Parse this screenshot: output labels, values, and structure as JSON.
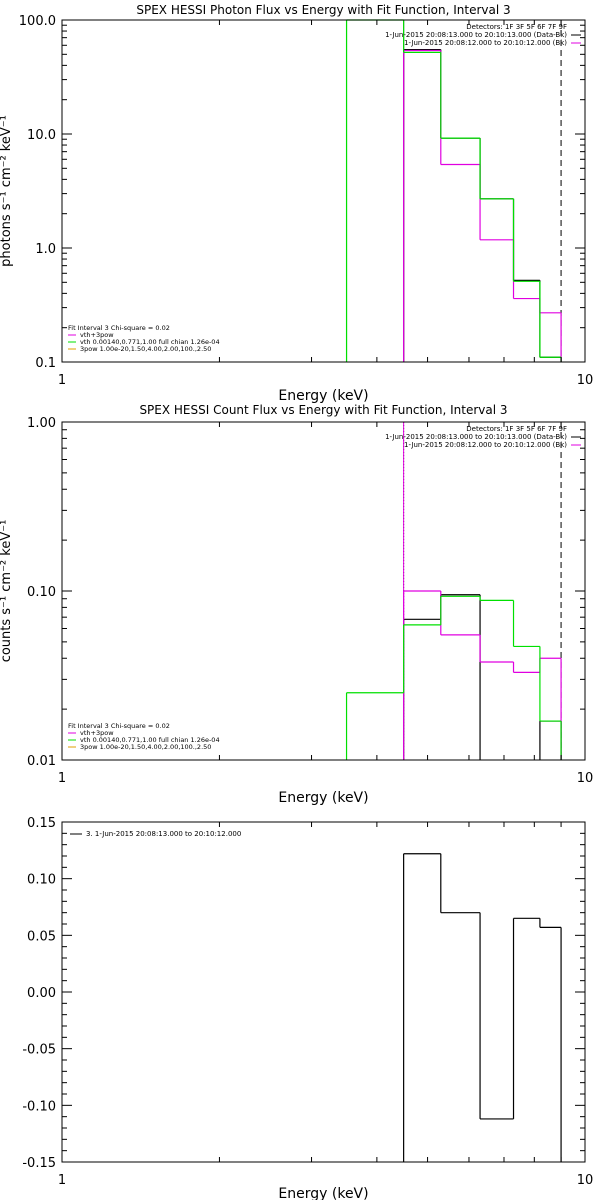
{
  "colors": {
    "axis": "#000000",
    "data": "#000000",
    "model": "#00e000",
    "fit": "#e000e0",
    "comp": "#00e000",
    "pileup": "#e0a000"
  },
  "chart_data": [
    {
      "type": "line",
      "title": "SPEX HESSI Photon Flux vs Energy with Fit Function, Interval 3",
      "xlabel": "Energy (keV)",
      "ylabel": "photons s⁻¹ cm⁻² keV⁻¹",
      "xscale": "log",
      "yscale": "log",
      "xlim": [
        1,
        10
      ],
      "ylim": [
        0.1,
        100
      ],
      "x_tick_labels": [
        "1",
        "10"
      ],
      "y_ticks": [
        0.1,
        1,
        10,
        100
      ],
      "y_tick_labels": [
        "0.1",
        "1.0",
        "10.0",
        "100.0"
      ],
      "legend_top_right": [
        {
          "text": "Detectors: 1F 3F 5F 6F 7F 9F",
          "color": "#000000"
        },
        {
          "text": "1-Jun-2015 20:08:13.000 to 20:10:13.000 (Data-Bk)",
          "color": "#000000"
        },
        {
          "text": "1-Jun-2015 20:08:12.000 to 20:10:12.000 (Bk)",
          "color": "#e000e0"
        }
      ],
      "legend_bottom_left": [
        {
          "text": "Fit Interval 3   Chi-square = 0.02",
          "color": "#000000"
        },
        {
          "text": "vth+3pow",
          "color": "#e000e0"
        },
        {
          "text": "vth 0.00140,0.771,1.00  full chian 1.26e-04",
          "color": "#00e000"
        },
        {
          "text": "3pow 1.00e-20,1.50,4.00,2.00,100.,2.50",
          "color": "#e0a000"
        }
      ],
      "vlines": [
        {
          "x": 3.5,
          "color": "#00e000",
          "style": "solid"
        },
        {
          "x": 4.5,
          "color": "#00e000",
          "style": "solid"
        },
        {
          "x": 4.5,
          "color": "#e000e0",
          "style": "solid"
        },
        {
          "x": 9.0,
          "color": "#000000",
          "style": "dashed"
        }
      ],
      "edges": [
        3.5,
        4.5,
        5.3,
        6.3,
        7.3,
        8.2,
        9.0
      ],
      "series": [
        {
          "name": "Data-Bk",
          "color": "#000000",
          "values": [
            null,
            55,
            9.2,
            2.7,
            0.52,
            0.11
          ]
        },
        {
          "name": "vth+3pow",
          "color": "#e000e0",
          "values": [
            null,
            54,
            5.4,
            1.18,
            0.36,
            0.27
          ]
        },
        {
          "name": "vth",
          "color": "#00e000",
          "values": [
            100,
            52,
            9.2,
            2.7,
            0.51,
            0.11
          ]
        }
      ]
    },
    {
      "type": "line",
      "title": "SPEX HESSI Count Flux vs Energy with Fit Function, Interval 3",
      "xlabel": "Energy (keV)",
      "ylabel": "counts s⁻¹ cm⁻² keV⁻¹",
      "xscale": "log",
      "yscale": "log",
      "xlim": [
        1,
        10
      ],
      "ylim": [
        0.01,
        1.0
      ],
      "x_tick_labels": [
        "1",
        "10"
      ],
      "y_ticks": [
        0.01,
        0.1,
        1.0
      ],
      "y_tick_labels": [
        "0.01",
        "0.10",
        "1.00"
      ],
      "legend_top_right": [
        {
          "text": "Detectors: 1F 3F 5F 6F 7F 9F",
          "color": "#000000"
        },
        {
          "text": "1-Jun-2015 20:08:13.000 to 20:10:13.000 (Data-Bk)",
          "color": "#000000"
        },
        {
          "text": "1-Jun-2015 20:08:12.000 to 20:10:12.000 (Bk)",
          "color": "#e000e0"
        }
      ],
      "legend_bottom_left": [
        {
          "text": "Fit Interval 3   Chi-square = 0.02",
          "color": "#000000"
        },
        {
          "text": "vth+3pow",
          "color": "#e000e0"
        },
        {
          "text": "vth 0.00140,0.771,1.00  full chian 1.26e-04",
          "color": "#00e000"
        },
        {
          "text": "3pow 1.00e-20,1.50,4.00,2.00,100.,2.50",
          "color": "#e0a000"
        }
      ],
      "vlines": [
        {
          "x": 4.5,
          "color": "#000000",
          "style": "dotted"
        },
        {
          "x": 4.5,
          "color": "#e000e0",
          "style": "solid"
        },
        {
          "x": 9.0,
          "color": "#000000",
          "style": "dashed"
        }
      ],
      "edges": [
        3.5,
        4.5,
        5.3,
        6.3,
        7.3,
        8.2,
        9.0
      ],
      "series": [
        {
          "name": "Data-Bk",
          "color": "#000000",
          "values": [
            null,
            0.068,
            0.095,
            null,
            null,
            0.017
          ]
        },
        {
          "name": "vth+3pow",
          "color": "#e000e0",
          "values": [
            null,
            0.1,
            0.055,
            0.038,
            0.033,
            0.04
          ]
        },
        {
          "name": "vth",
          "color": "#00e000",
          "values": [
            0.025,
            0.063,
            0.093,
            0.088,
            0.047,
            0.017
          ]
        }
      ]
    },
    {
      "type": "line",
      "xlabel": "Energy (keV)",
      "ylabel": "",
      "xscale": "log",
      "yscale": "linear",
      "xlim": [
        1,
        10
      ],
      "ylim": [
        -0.15,
        0.15
      ],
      "x_tick_labels": [
        "1",
        "10"
      ],
      "y_ticks": [
        -0.15,
        -0.1,
        -0.05,
        0.0,
        0.05,
        0.1,
        0.15
      ],
      "y_tick_labels": [
        "-0.15",
        "-0.10",
        "-0.05",
        "0.00",
        "0.05",
        "0.10",
        "0.15"
      ],
      "legend_top_left": [
        {
          "text": "3.  1-Jun-2015 20:08:13.000 to 20:10:12.000",
          "color": "#000000"
        }
      ],
      "edges": [
        4.5,
        5.3,
        6.3,
        7.3,
        8.2,
        9.0
      ],
      "series": [
        {
          "color": "#000000",
          "values": [
            0.122,
            0.07,
            -0.112,
            0.065,
            0.057
          ]
        }
      ]
    }
  ]
}
